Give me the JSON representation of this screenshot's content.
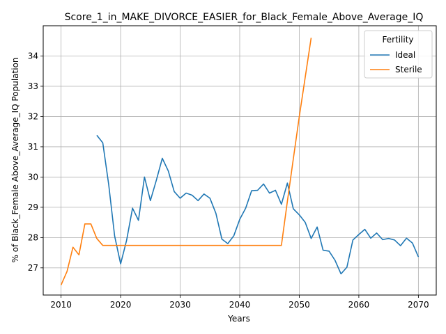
{
  "chart_data": {
    "type": "line",
    "title": "Score_1_in_MAKE_DIVORCE_EASIER_for_Black_Female_Above_Average_IQ",
    "xlabel": "Years",
    "ylabel": "% of Black_Female Above_Average_IQ Population",
    "xlim": [
      2007,
      2073
    ],
    "ylim": [
      26.1,
      35.0
    ],
    "xticks": [
      2010,
      2020,
      2030,
      2040,
      2050,
      2060,
      2070
    ],
    "yticks": [
      27,
      28,
      29,
      30,
      31,
      32,
      33,
      34
    ],
    "grid": true,
    "legend": {
      "title": "Fertility",
      "placement": "top-right"
    },
    "series": [
      {
        "name": "Ideal",
        "color": "#1f77b4",
        "x": [
          2016,
          2017,
          2018,
          2019,
          2020,
          2021,
          2022,
          2023,
          2024,
          2025,
          2026,
          2027,
          2028,
          2029,
          2030,
          2031,
          2032,
          2033,
          2034,
          2035,
          2036,
          2037,
          2038,
          2039,
          2040,
          2041,
          2042,
          2043,
          2044,
          2045,
          2046,
          2047,
          2048,
          2049,
          2050,
          2051,
          2052,
          2053,
          2054,
          2055,
          2056,
          2057,
          2058,
          2059,
          2060,
          2061,
          2062,
          2063,
          2064,
          2065,
          2066,
          2067,
          2068,
          2069,
          2070
        ],
        "y": [
          31.38,
          31.13,
          29.75,
          28.05,
          27.13,
          27.9,
          28.97,
          28.57,
          30.0,
          29.22,
          29.9,
          30.62,
          30.2,
          29.52,
          29.3,
          29.47,
          29.4,
          29.22,
          29.44,
          29.3,
          28.8,
          27.95,
          27.8,
          28.06,
          28.6,
          28.97,
          29.55,
          29.56,
          29.77,
          29.47,
          29.56,
          29.1,
          29.8,
          28.95,
          28.75,
          28.5,
          27.97,
          28.35,
          27.58,
          27.55,
          27.25,
          26.8,
          27.02,
          27.92,
          28.1,
          28.27,
          27.98,
          28.15,
          27.93,
          27.97,
          27.92,
          27.73,
          27.98,
          27.82,
          27.36
        ]
      },
      {
        "name": "Sterile",
        "color": "#ff7f0e",
        "x": [
          2010,
          2011,
          2012,
          2013,
          2014,
          2015,
          2016,
          2017,
          2018,
          2019,
          2020,
          2021,
          2022,
          2023,
          2024,
          2025,
          2026,
          2027,
          2028,
          2029,
          2030,
          2031,
          2032,
          2033,
          2034,
          2035,
          2036,
          2037,
          2038,
          2039,
          2040,
          2041,
          2042,
          2043,
          2044,
          2045,
          2046,
          2047,
          2048,
          2049,
          2050,
          2051,
          2052
        ],
        "y": [
          26.43,
          26.88,
          27.68,
          27.43,
          28.45,
          28.45,
          27.97,
          27.74,
          27.74,
          27.74,
          27.74,
          27.74,
          27.74,
          27.74,
          27.74,
          27.74,
          27.74,
          27.74,
          27.74,
          27.74,
          27.74,
          27.74,
          27.74,
          27.74,
          27.74,
          27.74,
          27.74,
          27.74,
          27.74,
          27.74,
          27.74,
          27.74,
          27.74,
          27.74,
          27.74,
          27.74,
          27.74,
          27.74,
          29.2,
          30.6,
          32.0,
          33.3,
          34.6
        ]
      }
    ]
  }
}
